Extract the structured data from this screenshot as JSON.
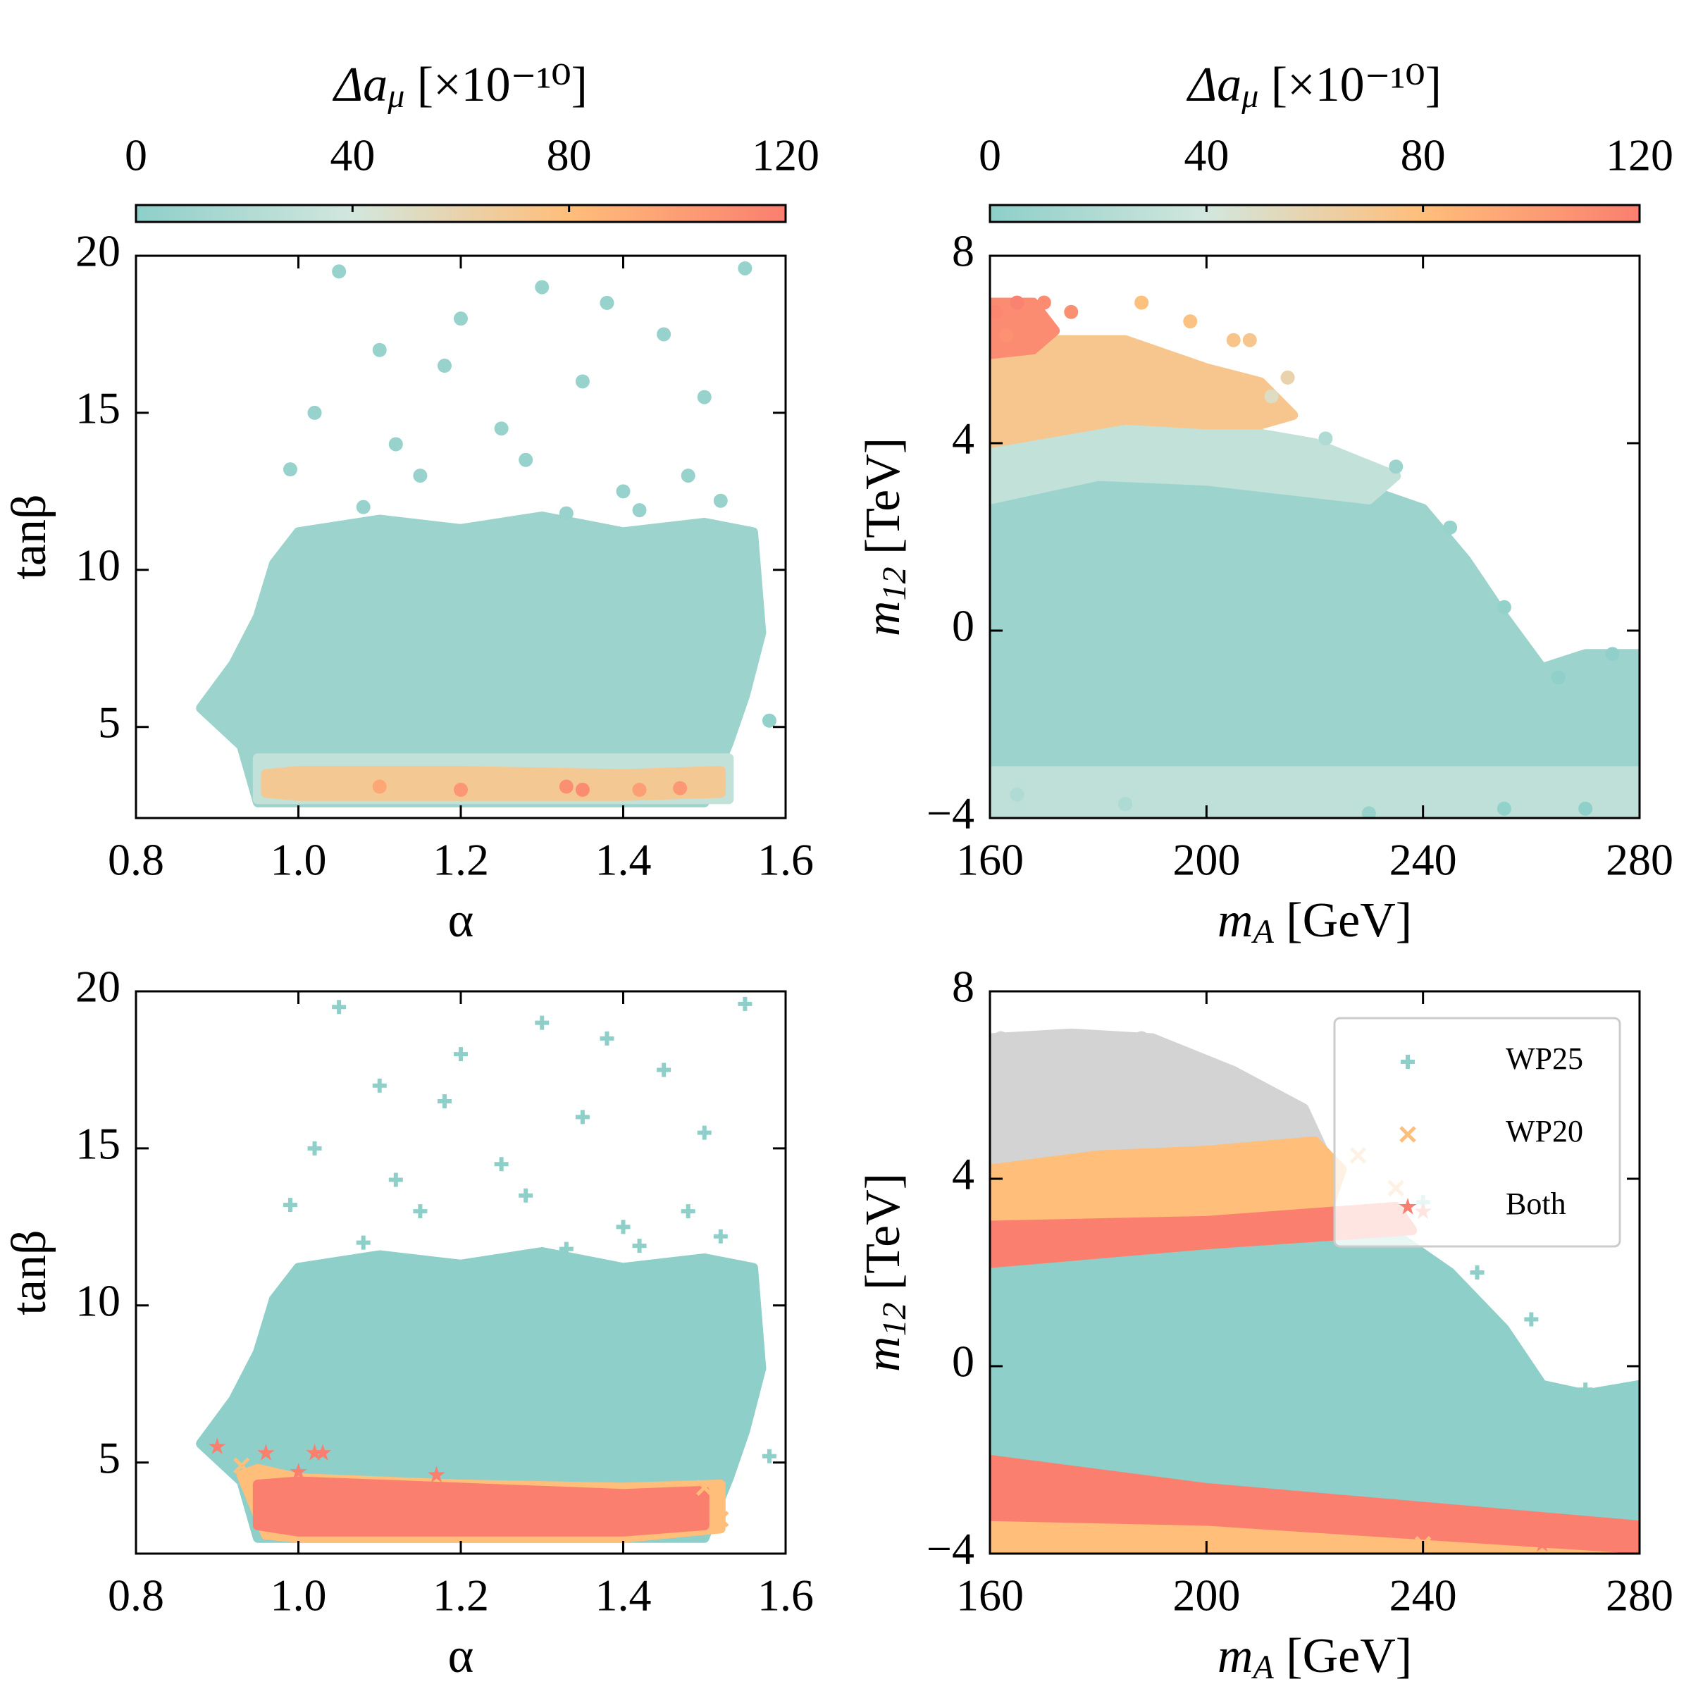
{
  "chart_data": [
    {
      "type": "scatter",
      "xlabel": "α",
      "ylabel": "tanβ",
      "xlim": [
        0.8,
        1.6
      ],
      "xticks": [
        0.8,
        {
          "value": 1,
          "label": "1.0"
        },
        1.2,
        1.4,
        1.6
      ],
      "ylim": [
        2.1,
        20
      ],
      "yticks": [
        5,
        10,
        15,
        20
      ],
      "colorbar": {
        "label": {
          "main": "Δa",
          "sub": "μ",
          "unit": " [×10⁻¹⁰]"
        },
        "lim": [
          0,
          120
        ],
        "ticks": [
          0,
          40,
          80,
          120
        ],
        "colors": [
          "#8ecfc9",
          "#d2e7de",
          "#ffbe7a",
          "#fa7f6f"
        ]
      },
      "series": [
        {
          "marker": "circle",
          "regions": [
            {
              "c": 8,
              "x": [
                0.88,
                0.92,
                0.95,
                0.97,
                1.0,
                1.1,
                1.2,
                1.3,
                1.4,
                1.5,
                1.56,
                1.57,
                1.55,
                1.53,
                1.5,
                0.95,
                0.93
              ],
              "y": [
                5.6,
                7,
                8.5,
                10.2,
                11.2,
                11.6,
                11.3,
                11.7,
                11.2,
                11.5,
                11.2,
                8,
                6,
                4.5,
                2.6,
                2.6,
                4.4
              ]
            },
            {
              "c": 30,
              "x": [
                0.95,
                1.53,
                1.53,
                0.95
              ],
              "y": [
                2.7,
                2.7,
                4.0,
                4.0
              ]
            },
            {
              "c": 70,
              "x": [
                0.96,
                1.0,
                1.2,
                1.4,
                1.52,
                1.52,
                1.4,
                1.2,
                1.0,
                0.96
              ],
              "y": [
                2.9,
                2.8,
                2.8,
                2.8,
                2.9,
                3.6,
                3.5,
                3.6,
                3.6,
                3.5
              ]
            }
          ],
          "x": [
            1.02,
            1.05,
            1.1,
            1.15,
            1.2,
            1.25,
            1.3,
            1.35,
            1.4,
            1.45,
            1.5,
            1.55,
            1.08,
            1.18,
            1.28,
            1.38,
            1.48,
            1.12,
            1.33,
            1.52,
            0.99,
            1.42,
            1.58,
            1.2,
            1.33,
            1.35,
            1.42,
            1.47,
            1.1
          ],
          "y": [
            15,
            19.5,
            17,
            13,
            18,
            14.5,
            19,
            16,
            12.5,
            17.5,
            15.5,
            19.6,
            12,
            16.5,
            13.5,
            18.5,
            13,
            14,
            11.8,
            12.2,
            13.2,
            11.9,
            5.2,
            3,
            3.1,
            3,
            3,
            3.05,
            3.1
          ],
          "c": [
            5,
            5,
            5,
            5,
            5,
            5,
            5,
            5,
            5,
            5,
            5,
            5,
            5,
            5,
            5,
            5,
            5,
            5,
            5,
            5,
            5,
            5,
            3,
            105,
            110,
            112,
            100,
            104,
            95
          ]
        }
      ]
    },
    {
      "type": "scatter",
      "xlabel": {
        "main": "m",
        "sub": "A",
        "unit": " [GeV]"
      },
      "ylabel": {
        "main": "m",
        "sub": "12",
        "unit": " [TeV]"
      },
      "xlim": [
        160,
        280
      ],
      "xticks": [
        160,
        200,
        240,
        280
      ],
      "ylim": [
        -4,
        8
      ],
      "yticks": [
        {
          "value": -4,
          "label": "−4"
        },
        0,
        4,
        8
      ],
      "colorbar": {
        "label": {
          "main": "Δa",
          "sub": "μ",
          "unit": " [×10⁻¹⁰]"
        },
        "lim": [
          0,
          120
        ],
        "ticks": [
          0,
          40,
          80,
          120
        ],
        "colors": [
          "#8ecfc9",
          "#d2e7de",
          "#ffbe7a",
          "#fa7f6f"
        ]
      },
      "series": [
        {
          "marker": "circle",
          "regions": [
            {
              "c": 8,
              "x": [
                160,
                160,
                180,
                200,
                215,
                230,
                240,
                248,
                255,
                262,
                270,
                280,
                280
              ],
              "y": [
                -4,
                3.5,
                3.8,
                3.6,
                3.4,
                3.0,
                2.6,
                1.5,
                0.3,
                -0.8,
                -0.5,
                -0.5,
                -4
              ]
            },
            {
              "c": 28,
              "x": [
                160,
                280,
                280,
                160
              ],
              "y": [
                -4,
                -4,
                -3,
                -3
              ]
            },
            {
              "c": 30,
              "x": [
                160,
                160,
                180,
                200,
                220,
                235,
                230,
                215,
                200,
                180
              ],
              "y": [
                2.8,
                4.3,
                4.6,
                4.4,
                4.0,
                3.3,
                2.8,
                3.0,
                3.2,
                3.3
              ]
            },
            {
              "c": 72,
              "x": [
                160,
                160,
                170,
                185,
                200,
                210,
                216,
                210,
                200,
                185,
                170
              ],
              "y": [
                4.0,
                6.0,
                6.2,
                6.2,
                5.6,
                5.3,
                4.6,
                4.4,
                4.4,
                4.5,
                4.2
              ]
            },
            {
              "c": 112,
              "x": [
                160,
                160,
                168,
                172,
                168
              ],
              "y": [
                5.9,
                7.0,
                7.0,
                6.4,
                6.0
              ]
            }
          ],
          "x": [
            161,
            165,
            170,
            175,
            163,
            188,
            197,
            205,
            208,
            215,
            212,
            222,
            235,
            245,
            255,
            265,
            275,
            270,
            165,
            185,
            230,
            255
          ],
          "y": [
            6.8,
            7.0,
            7.0,
            6.8,
            6.3,
            7.0,
            6.6,
            6.2,
            6.2,
            5.4,
            5.0,
            4.1,
            3.5,
            2.2,
            0.5,
            -1,
            -0.5,
            -3.8,
            -3.5,
            -3.7,
            -3.9,
            -3.8
          ],
          "c": [
            115,
            118,
            112,
            110,
            108,
            78,
            76,
            74,
            72,
            60,
            50,
            20,
            8,
            5,
            3,
            2,
            2,
            1,
            20,
            18,
            5,
            3
          ]
        }
      ]
    },
    {
      "type": "scatter",
      "xlabel": "α",
      "ylabel": "tanβ",
      "xlim": [
        0.8,
        1.6
      ],
      "xticks": [
        0.8,
        {
          "value": 1,
          "label": "1.0"
        },
        1.2,
        1.4,
        1.6
      ],
      "ylim": [
        2.1,
        20
      ],
      "yticks": [
        5,
        10,
        15,
        20
      ],
      "series": [
        {
          "name": "WP25",
          "color": "#8ecfc9",
          "marker": "plus",
          "regions": [
            {
              "x": [
                0.88,
                0.92,
                0.95,
                0.97,
                1.0,
                1.1,
                1.2,
                1.3,
                1.4,
                1.5,
                1.56,
                1.57,
                1.55,
                1.53,
                1.5,
                0.95,
                0.93
              ],
              "y": [
                5.6,
                7,
                8.5,
                10.2,
                11.2,
                11.6,
                11.3,
                11.7,
                11.2,
                11.5,
                11.2,
                8,
                6,
                4.5,
                2.6,
                2.6,
                4.4
              ]
            }
          ],
          "x": [
            1.02,
            1.05,
            1.1,
            1.15,
            1.2,
            1.25,
            1.3,
            1.35,
            1.4,
            1.45,
            1.5,
            1.55,
            1.08,
            1.18,
            1.28,
            1.38,
            1.48,
            1.12,
            1.33,
            1.52,
            0.99,
            1.42,
            1.58
          ],
          "y": [
            15,
            19.5,
            17,
            13,
            18,
            14.5,
            19,
            16,
            12.5,
            17.5,
            15.5,
            19.6,
            12,
            16.5,
            13.5,
            18.5,
            13,
            14,
            11.8,
            12.2,
            13.2,
            11.9,
            5.2
          ]
        },
        {
          "name": "WP20",
          "color": "#ffbe7a",
          "marker": "x",
          "regions": [
            {
              "x": [
                0.93,
                0.96,
                1.0,
                1.2,
                1.4,
                1.52,
                1.52,
                1.4,
                1.2,
                1.0,
                0.95
              ],
              "y": [
                4.6,
                2.7,
                2.6,
                2.6,
                2.6,
                2.9,
                4.3,
                4.2,
                4.3,
                4.5,
                4.8
              ]
            }
          ],
          "x": [
            0.93,
            1.5,
            1.52
          ],
          "y": [
            4.9,
            4.2,
            3.2
          ]
        },
        {
          "name": "Both",
          "color": "#fa7f6f",
          "marker": "star",
          "regions": [
            {
              "x": [
                0.95,
                1.0,
                1.2,
                1.4,
                1.5,
                1.5,
                1.4,
                1.2,
                1.0,
                0.95
              ],
              "y": [
                3.0,
                2.8,
                2.8,
                2.8,
                3.0,
                4.1,
                4.0,
                4.2,
                4.4,
                4.3
              ]
            }
          ],
          "x": [
            0.9,
            0.96,
            1.02,
            1.03,
            1.17,
            1.0
          ],
          "y": [
            5.5,
            5.3,
            5.3,
            5.3,
            4.6,
            4.7
          ]
        }
      ]
    },
    {
      "type": "scatter",
      "xlabel": {
        "main": "m",
        "sub": "A",
        "unit": " [GeV]"
      },
      "ylabel": {
        "main": "m",
        "sub": "12",
        "unit": " [TeV]"
      },
      "xlim": [
        160,
        280
      ],
      "xticks": [
        160,
        200,
        240,
        280
      ],
      "ylim": [
        -4,
        8
      ],
      "yticks": [
        {
          "value": -4,
          "label": "−4"
        },
        0,
        4,
        8
      ],
      "legend": "upper right",
      "series": [
        {
          "color": "#d3d3d3",
          "marker": "circle",
          "regions": [
            {
              "x": [
                160,
                160,
                175,
                190,
                205,
                218,
                222,
                200,
                180
              ],
              "y": [
                4.2,
                7.0,
                7.1,
                7.0,
                6.3,
                5.5,
                4.5,
                4.4,
                4.4
              ]
            }
          ],
          "x": [
            162,
            170,
            188,
            205,
            215,
            175,
            195
          ],
          "y": [
            7,
            7,
            7,
            6.2,
            5.4,
            6.5,
            6.3
          ]
        },
        {
          "name": "WP25",
          "color": "#8ecfc9",
          "marker": "plus",
          "regions": [
            {
              "x": [
                160,
                160,
                180,
                200,
                220,
                235,
                245,
                255,
                262,
                270,
                280,
                280
              ],
              "y": [
                -3.2,
                2.3,
                2.5,
                2.7,
                3.0,
                2.8,
                2.0,
                0.8,
                -0.4,
                -0.6,
                -0.4,
                -3.9
              ]
            }
          ],
          "x": [
            250,
            260,
            270,
            278,
            240
          ],
          "y": [
            2,
            1,
            -0.5,
            -1,
            3.5
          ]
        },
        {
          "name": "WP20",
          "color": "#ffbe7a",
          "marker": "x",
          "regions": [
            {
              "x": [
                160,
                160,
                180,
                200,
                220,
                225,
                222,
                200,
                180
              ],
              "y": [
                2.6,
                4.2,
                4.5,
                4.6,
                4.8,
                4.2,
                3.2,
                3.0,
                2.8
              ]
            },
            {
              "x": [
                160,
                160,
                200,
                240,
                280,
                280,
                240,
                200
              ],
              "y": [
                -4,
                -2.6,
                -3.0,
                -3.3,
                -3.6,
                -4,
                -4,
                -4
              ]
            }
          ],
          "x": [
            228,
            235,
            180,
            200,
            240
          ],
          "y": [
            4.5,
            3.8,
            -4,
            -4,
            -3.8
          ]
        },
        {
          "name": "Both",
          "color": "#fa7f6f",
          "marker": "star",
          "regions": [
            {
              "x": [
                160,
                160,
                200,
                235,
                238,
                200
              ],
              "y": [
                2.2,
                3.0,
                3.1,
                3.4,
                2.9,
                2.6
              ]
            },
            {
              "x": [
                160,
                160,
                200,
                240,
                280,
                280,
                240,
                200
              ],
              "y": [
                -3.2,
                -2.0,
                -2.6,
                -3.0,
                -3.4,
                -3.9,
                -3.6,
                -3.3
              ]
            }
          ],
          "x": [
            240,
            255,
            262,
            278,
            210
          ],
          "y": [
            3.3,
            -3.5,
            -3.8,
            -3.9,
            -3.2
          ]
        }
      ]
    }
  ]
}
